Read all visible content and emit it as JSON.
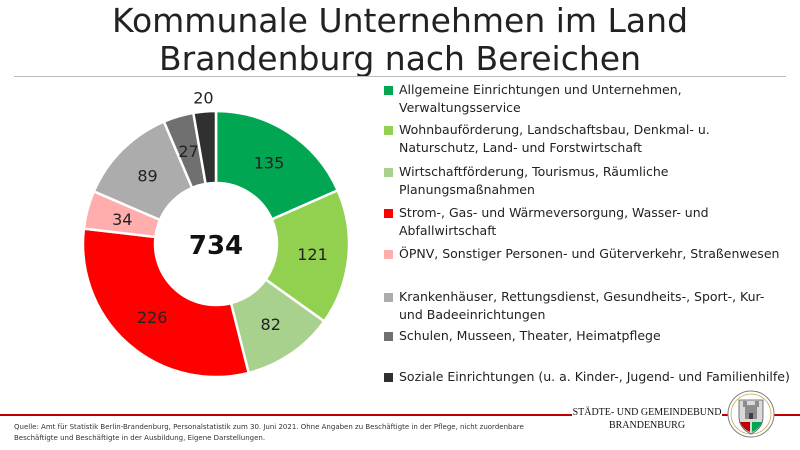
{
  "title": "Kommunale Unternehmen im Land Brandenburg nach Bereichen",
  "chart_data": {
    "type": "pie",
    "variant": "donut",
    "title": "Kommunale Unternehmen im Land Brandenburg nach Bereichen",
    "total": "734",
    "categories": [
      "Allgemeine Einrichtungen und Unternehmen, Verwaltungsservice",
      "Wohnbauförderung, Landschaftsbau, Denkmal- u. Naturschutz, Land- und Forstwirtschaft",
      "Wirtschaftförderung, Tourismus, Räumliche Planungsmaßnahmen",
      "Strom-, Gas- und Wärmeversorgung, Wasser- und Abfallwirtschaft",
      "ÖPNV, Sonstiger Personen- und Güterverkehr, Straßenwesen",
      "Krankenhäuser, Rettungsdienst, Gesundheits-, Sport-, Kur- und Badeeinrichtungen",
      "Schulen, Musseen, Theater, Heimatpflege",
      "Soziale Einrichtungen (u. a. Kinder-, Jugend- und Familienhilfe)"
    ],
    "values": [
      135,
      121,
      82,
      226,
      34,
      89,
      27,
      20
    ],
    "colors": [
      "#00a651",
      "#92d050",
      "#a9d18e",
      "#ff0000",
      "#ffadad",
      "#acacac",
      "#707070",
      "#303030"
    ],
    "legend_position": "right"
  },
  "footer": {
    "source": "Quelle: Amt für Statistik Berlin-Brandenburg, Personalstatistik zum 30. Juni 2021. Ohne Angaben zu Beschäftigte in der Pflege, nicht zuordenbare Beschäftigte und Beschäftigte in der Ausbildung, Eigene Darstellungen.",
    "org_line1": "STÄDTE- UND GEMEINDEBUND",
    "org_line2": "BRANDENBURG"
  }
}
